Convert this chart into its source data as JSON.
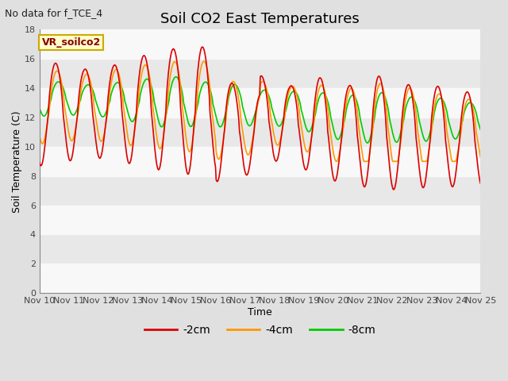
{
  "title": "Soil CO2 East Temperatures",
  "subtitle": "No data for f_TCE_4",
  "xlabel": "Time",
  "ylabel": "Soil Temperature (C)",
  "ylim": [
    0,
    18
  ],
  "yticks": [
    0,
    2,
    4,
    6,
    8,
    10,
    12,
    14,
    16,
    18
  ],
  "xtick_labels": [
    "Nov 10",
    "Nov 11",
    "Nov 12",
    "Nov 13",
    "Nov 14",
    "Nov 15",
    "Nov 16",
    "Nov 17",
    "Nov 18",
    "Nov 19",
    "Nov 20",
    "Nov 21",
    "Nov 22",
    "Nov 23",
    "Nov 24",
    "Nov 25"
  ],
  "legend_label": "VR_soilco2",
  "series_labels": [
    "-2cm",
    "-4cm",
    "-8cm"
  ],
  "series_colors": [
    "#dd0000",
    "#ff9900",
    "#00cc00"
  ],
  "line_width": 1.2,
  "bg_color": "#e0e0e0",
  "plot_bg_color": "#e8e8e8",
  "stripe_color": "#f8f8f8",
  "title_fontsize": 13,
  "label_fontsize": 9,
  "tick_fontsize": 8,
  "subtitle_fontsize": 9
}
